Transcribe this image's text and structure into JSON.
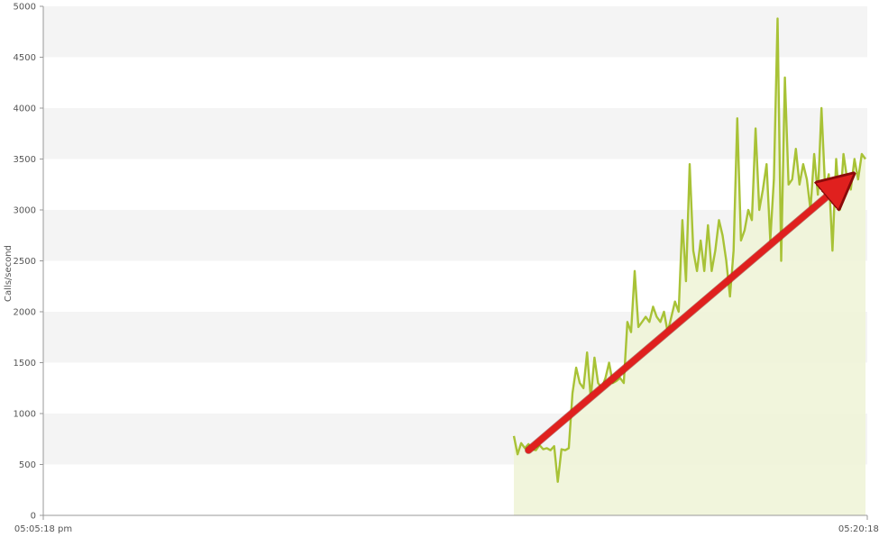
{
  "chart_data": {
    "type": "area",
    "title": "",
    "xlabel": "",
    "ylabel": "Calls/second",
    "ylim": [
      0,
      5000
    ],
    "yticks": [
      0,
      500,
      1000,
      1500,
      2000,
      2500,
      3000,
      3500,
      4000,
      4500,
      5000
    ],
    "xticks": [
      "05:05:18 pm",
      "05:20:18 pm"
    ],
    "grid": "alternating horizontal bands",
    "legend": "none",
    "colors": {
      "line": "#a8c236",
      "fill": "#eef3d6",
      "arrow": "#e0201e",
      "band": "#f4f4f4"
    },
    "series": [
      {
        "x": [
          "05:13:52 pm",
          "05:13:56 pm",
          "05:14:00 pm",
          "05:14:04 pm",
          "05:14:08 pm",
          "05:14:12 pm",
          "05:14:16 pm",
          "05:14:20 pm",
          "05:14:24 pm",
          "05:14:28 pm",
          "05:14:32 pm",
          "05:14:36 pm",
          "05:14:40 pm",
          "05:14:44 pm",
          "05:14:48 pm",
          "05:14:52 pm",
          "05:14:56 pm",
          "05:15:00 pm",
          "05:15:04 pm",
          "05:15:08 pm",
          "05:15:12 pm",
          "05:15:16 pm",
          "05:15:20 pm",
          "05:15:24 pm",
          "05:15:28 pm",
          "05:15:32 pm",
          "05:15:36 pm",
          "05:15:40 pm",
          "05:15:44 pm",
          "05:15:48 pm",
          "05:15:52 pm",
          "05:15:56 pm",
          "05:16:00 pm",
          "05:16:04 pm",
          "05:16:08 pm",
          "05:16:12 pm",
          "05:16:16 pm",
          "05:16:20 pm",
          "05:16:24 pm",
          "05:16:28 pm",
          "05:16:32 pm",
          "05:16:36 pm",
          "05:16:40 pm",
          "05:16:44 pm",
          "05:16:48 pm",
          "05:16:52 pm",
          "05:16:56 pm",
          "05:17:00 pm",
          "05:17:04 pm",
          "05:17:08 pm",
          "05:17:12 pm",
          "05:17:16 pm",
          "05:17:20 pm",
          "05:17:24 pm",
          "05:17:28 pm",
          "05:17:32 pm",
          "05:17:36 pm",
          "05:17:40 pm",
          "05:17:44 pm",
          "05:17:48 pm",
          "05:17:52 pm",
          "05:17:56 pm",
          "05:18:00 pm",
          "05:18:04 pm",
          "05:18:08 pm",
          "05:18:12 pm",
          "05:18:16 pm",
          "05:18:20 pm",
          "05:18:24 pm",
          "05:18:28 pm",
          "05:18:32 pm",
          "05:18:36 pm",
          "05:18:40 pm",
          "05:18:44 pm",
          "05:18:48 pm",
          "05:18:52 pm",
          "05:18:56 pm",
          "05:19:00 pm",
          "05:19:04 pm",
          "05:19:08 pm",
          "05:19:12 pm",
          "05:19:16 pm",
          "05:19:20 pm",
          "05:19:24 pm",
          "05:19:28 pm",
          "05:19:32 pm",
          "05:19:36 pm",
          "05:19:40 pm",
          "05:19:44 pm",
          "05:19:48 pm",
          "05:19:52 pm",
          "05:19:56 pm",
          "05:20:00 pm",
          "05:20:04 pm",
          "05:20:08 pm",
          "05:20:12 pm",
          "05:20:16 pm"
        ],
        "values": [
          780,
          600,
          710,
          660,
          700,
          650,
          640,
          690,
          650,
          660,
          640,
          680,
          330,
          650,
          640,
          660,
          1200,
          1450,
          1300,
          1250,
          1600,
          1150,
          1550,
          1300,
          1250,
          1350,
          1500,
          1300,
          1320,
          1350,
          1300,
          1900,
          1800,
          2400,
          1850,
          1900,
          1950,
          1900,
          2050,
          1950,
          1900,
          2000,
          1800,
          1950,
          2100,
          2000,
          2900,
          2300,
          3450,
          2600,
          2400,
          2700,
          2400,
          2850,
          2400,
          2600,
          2900,
          2750,
          2500,
          2150,
          2600,
          3900,
          2700,
          2800,
          3000,
          2900,
          3800,
          3000,
          3200,
          3450,
          2700,
          3300,
          4880,
          2500,
          4300,
          3250,
          3300,
          3600,
          3250,
          3450,
          3300,
          3000,
          3550,
          3150,
          4000,
          3200,
          3350,
          2600,
          3500,
          3000,
          3550,
          3300,
          3200,
          3500,
          3300,
          3550,
          3500
        ]
      }
    ],
    "annotations": [
      {
        "type": "arrow",
        "from": {
          "x": "05:14:08 pm",
          "y": 640
        },
        "to": {
          "x": "05:19:56 pm",
          "y": 3300
        }
      }
    ]
  }
}
